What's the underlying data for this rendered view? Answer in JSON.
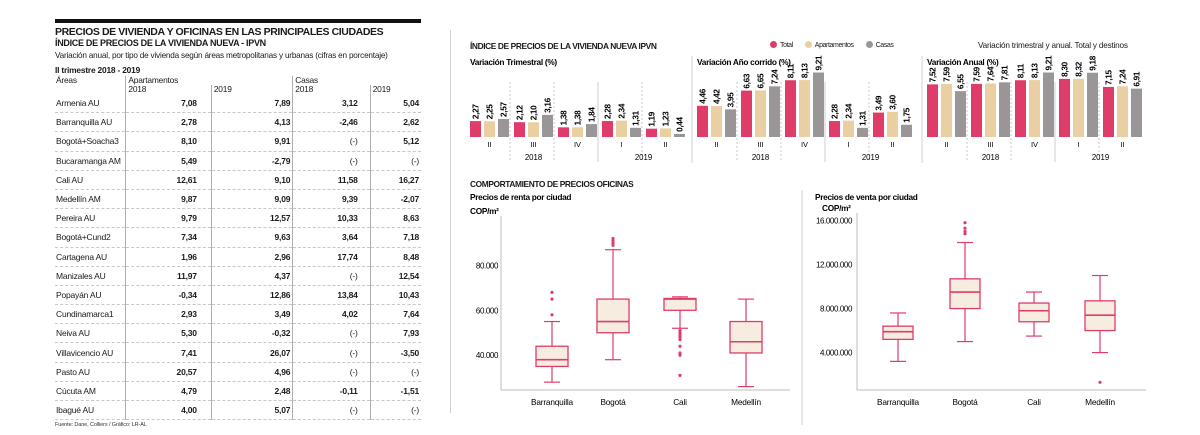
{
  "table": {
    "title": "PRECIOS DE VIVIENDA Y OFICINAS EN LAS PRINCIPALES CIUDADES",
    "subtitle": "ÍNDICE DE PRECIOS DE LA VIVIENDA NUEVA - IPVN",
    "description": "Variación anual, por tipo de vivienda según áreas metropolitanas y urbanas (cifras en porcentaje)",
    "period": "II trimestre 2018 - 2019",
    "headers": {
      "areas": "Áreas",
      "apartamentos": "Apartamentos",
      "casas": "Casas",
      "y2018": "2018",
      "y2019": "2019"
    },
    "rows": [
      {
        "area": "Armenia AU",
        "apt2018": "7,08",
        "apt2019": "7,89",
        "casa2018": "3,12",
        "casa2019": "5,04"
      },
      {
        "area": "Barranquilla AU",
        "apt2018": "2,78",
        "apt2019": "4,13",
        "casa2018": "-2,46",
        "casa2019": "2,62"
      },
      {
        "area": "Bogotá+Soacha3",
        "apt2018": "8,10",
        "apt2019": "9,91",
        "casa2018": "(-)",
        "casa2019": "5,12"
      },
      {
        "area": "Bucaramanga AM",
        "apt2018": "5,49",
        "apt2019": "-2,79",
        "casa2018": "(-)",
        "casa2019": "(-)"
      },
      {
        "area": "Cali AU",
        "apt2018": "12,61",
        "apt2019": "9,10",
        "casa2018": "11,58",
        "casa2019": "16,27"
      },
      {
        "area": "Medellín AM",
        "apt2018": "9,87",
        "apt2019": "9,09",
        "casa2018": "9,39",
        "casa2019": "-2,07"
      },
      {
        "area": "Pereira AU",
        "apt2018": "9,79",
        "apt2019": "12,57",
        "casa2018": "10,33",
        "casa2019": "8,63"
      },
      {
        "area": "Bogotá+Cund2",
        "apt2018": "7,34",
        "apt2019": "9,63",
        "casa2018": "3,64",
        "casa2019": "7,18"
      },
      {
        "area": "Cartagena AU",
        "apt2018": "1,96",
        "apt2019": "2,96",
        "casa2018": "17,74",
        "casa2019": "8,48"
      },
      {
        "area": "Manizales AU",
        "apt2018": "11,97",
        "apt2019": "4,37",
        "casa2018": "(-)",
        "casa2019": "12,54"
      },
      {
        "area": "Popayán AU",
        "apt2018": "-0,34",
        "apt2019": "12,86",
        "casa2018": "13,84",
        "casa2019": "10,43"
      },
      {
        "area": "Cundinamarca1",
        "apt2018": "2,93",
        "apt2019": "3,49",
        "casa2018": "4,02",
        "casa2019": "7,64"
      },
      {
        "area": "Neiva AU",
        "apt2018": "5,30",
        "apt2019": "-0,32",
        "casa2018": "(-)",
        "casa2019": "7,93"
      },
      {
        "area": "Villavicencio AU",
        "apt2018": "7,41",
        "apt2019": "26,07",
        "casa2018": "(-)",
        "casa2019": "-3,50"
      },
      {
        "area": "Pasto AU",
        "apt2018": "20,57",
        "apt2019": "4,96",
        "casa2018": "(-)",
        "casa2019": "(-)"
      },
      {
        "area": "Cúcuta AM",
        "apt2018": "4,79",
        "apt2019": "2,48",
        "casa2018": "-0,11",
        "casa2019": "-1,51"
      },
      {
        "area": "Ibagué AU",
        "apt2018": "4,00",
        "apt2019": "5,07",
        "casa2018": "(-)",
        "casa2019": "(-)"
      }
    ],
    "source": "Fuente: Dane, Colliers / Gráfico: LR-AL"
  },
  "ipvn": {
    "title": "ÍNDICE DE PRECIOS DE LA VIVIENDA NUEVA IPVN",
    "subtitle": "Variación trimestral y anual. Total y destinos",
    "legend": [
      {
        "name": "Total",
        "color": "#e03c6a"
      },
      {
        "name": "Apartamentos",
        "color": "#e9cfa2"
      },
      {
        "name": "Casas",
        "color": "#9a9597"
      }
    ]
  },
  "offices": {
    "title": "COMPORTAMIENTO DE PRECIOS OFICINAS",
    "box_color": "#e03c6a",
    "box_fill": "#f6ede0"
  },
  "chart_data": [
    {
      "type": "bar",
      "title": "Variación Trimestral (%)",
      "categories": [
        "II",
        "III",
        "IV",
        "I",
        "II"
      ],
      "years": [
        {
          "label": "2018",
          "span": [
            0,
            2
          ]
        },
        {
          "label": "2019",
          "span": [
            3,
            4
          ]
        }
      ],
      "series": [
        {
          "name": "Total",
          "values": [
            2.27,
            2.12,
            1.38,
            2.28,
            1.19
          ]
        },
        {
          "name": "Apartamentos",
          "values": [
            2.25,
            2.1,
            1.38,
            2.34,
            1.23
          ]
        },
        {
          "name": "Casas",
          "values": [
            2.57,
            3.16,
            1.84,
            1.31,
            0.44
          ]
        }
      ],
      "labels": [
        [
          "2,27",
          "2,12",
          "1,38",
          "2,28",
          "1,19"
        ],
        [
          "2,25",
          "2,10",
          "1,38",
          "2,34",
          "1,23"
        ],
        [
          "2,57",
          "3,16",
          "1,84",
          "1,31",
          "0,44"
        ]
      ],
      "ylim": [
        0,
        10
      ]
    },
    {
      "type": "bar",
      "title": "Variación Año corrido (%)",
      "categories": [
        "II",
        "III",
        "IV",
        "I",
        "II"
      ],
      "years": [
        {
          "label": "2018",
          "span": [
            0,
            2
          ]
        },
        {
          "label": "2019",
          "span": [
            3,
            4
          ]
        }
      ],
      "series": [
        {
          "name": "Total",
          "values": [
            4.46,
            6.63,
            8.11,
            2.28,
            3.49
          ]
        },
        {
          "name": "Apartamentos",
          "values": [
            4.42,
            6.65,
            8.13,
            2.34,
            3.6
          ]
        },
        {
          "name": "Casas",
          "values": [
            3.95,
            7.24,
            9.21,
            1.31,
            1.75
          ]
        }
      ],
      "labels": [
        [
          "4,46",
          "6,63",
          "8,11",
          "2,28",
          "3,49"
        ],
        [
          "4,42",
          "6,65",
          "8,13",
          "2,34",
          "3,60"
        ],
        [
          "3,95",
          "7,24",
          "9,21",
          "1,31",
          "1,75"
        ]
      ],
      "ylim": [
        0,
        10
      ]
    },
    {
      "type": "bar",
      "title": "Variación Anual (%)",
      "categories": [
        "II",
        "III",
        "IV",
        "I",
        "II"
      ],
      "years": [
        {
          "label": "2018",
          "span": [
            0,
            2
          ]
        },
        {
          "label": "2019",
          "span": [
            3,
            4
          ]
        }
      ],
      "series": [
        {
          "name": "Total",
          "values": [
            7.52,
            7.59,
            8.11,
            8.3,
            7.15
          ]
        },
        {
          "name": "Apartamentos",
          "values": [
            7.59,
            7.64,
            8.13,
            8.32,
            7.24
          ]
        },
        {
          "name": "Casas",
          "values": [
            6.55,
            7.81,
            9.21,
            9.18,
            6.91
          ]
        }
      ],
      "labels": [
        [
          "7,52",
          "7,59",
          "8,11",
          "8,30",
          "7,15"
        ],
        [
          "7,59",
          "7,64",
          "8,13",
          "8,32",
          "7,24"
        ],
        [
          "6,55",
          "7,81",
          "9,21",
          "9,18",
          "6,91"
        ]
      ],
      "ylim": [
        0,
        10
      ]
    },
    {
      "type": "box",
      "title": "Precios de renta por ciudad",
      "ylabel": "COP/m²",
      "yticks": [
        40000,
        60000,
        80000
      ],
      "ytick_labels": [
        "40.000",
        "60.000",
        "80.000"
      ],
      "ylim": [
        24500,
        94000
      ],
      "categories": [
        "Barranquilla",
        "Bogotá",
        "Cali",
        "Medellín"
      ],
      "boxes": [
        {
          "low": 28000,
          "q1": 35000,
          "median": 38000,
          "q3": 44000,
          "high": 55000,
          "outliers": [
            58000,
            65000,
            68000
          ]
        },
        {
          "low": 38000,
          "q1": 50000,
          "median": 55000,
          "q3": 65000,
          "high": 87000,
          "outliers": [
            89000,
            90000,
            91000,
            92000
          ]
        },
        {
          "low": 52000,
          "q1": 60000,
          "median": 65000,
          "q3": 65300,
          "high": 66000,
          "outliers": [
            51000,
            50000,
            49000,
            48000,
            47000,
            44000,
            41000,
            40000,
            31000
          ]
        },
        {
          "low": 26000,
          "q1": 41000,
          "median": 46000,
          "q3": 55000,
          "high": 65000,
          "outliers": []
        }
      ]
    },
    {
      "type": "box",
      "title": "Precios de venta por ciudad",
      "ylabel": "COP/m²",
      "yticks": [
        4000000,
        8000000,
        12000000,
        16000000
      ],
      "ytick_labels": [
        "4.000.000",
        "8.000.000",
        "12.000.000",
        "16.000.000"
      ],
      "ylim": [
        600000,
        16500000
      ],
      "categories": [
        "Barranquilla",
        "Bogotá",
        "Cali",
        "Medellín"
      ],
      "boxes": [
        {
          "low": 3200000,
          "q1": 5200000,
          "median": 5900000,
          "q3": 6400000,
          "high": 7600000,
          "outliers": []
        },
        {
          "low": 5000000,
          "q1": 8000000,
          "median": 9500000,
          "q3": 10700000,
          "high": 14000000,
          "outliers": [
            14800000,
            15000000,
            15300000,
            15800000
          ]
        },
        {
          "low": 5500000,
          "q1": 6800000,
          "median": 7800000,
          "q3": 8500000,
          "high": 9500000,
          "outliers": []
        },
        {
          "low": 4000000,
          "q1": 6000000,
          "median": 7400000,
          "q3": 8700000,
          "high": 11000000,
          "outliers": [
            1300000
          ]
        }
      ]
    }
  ]
}
